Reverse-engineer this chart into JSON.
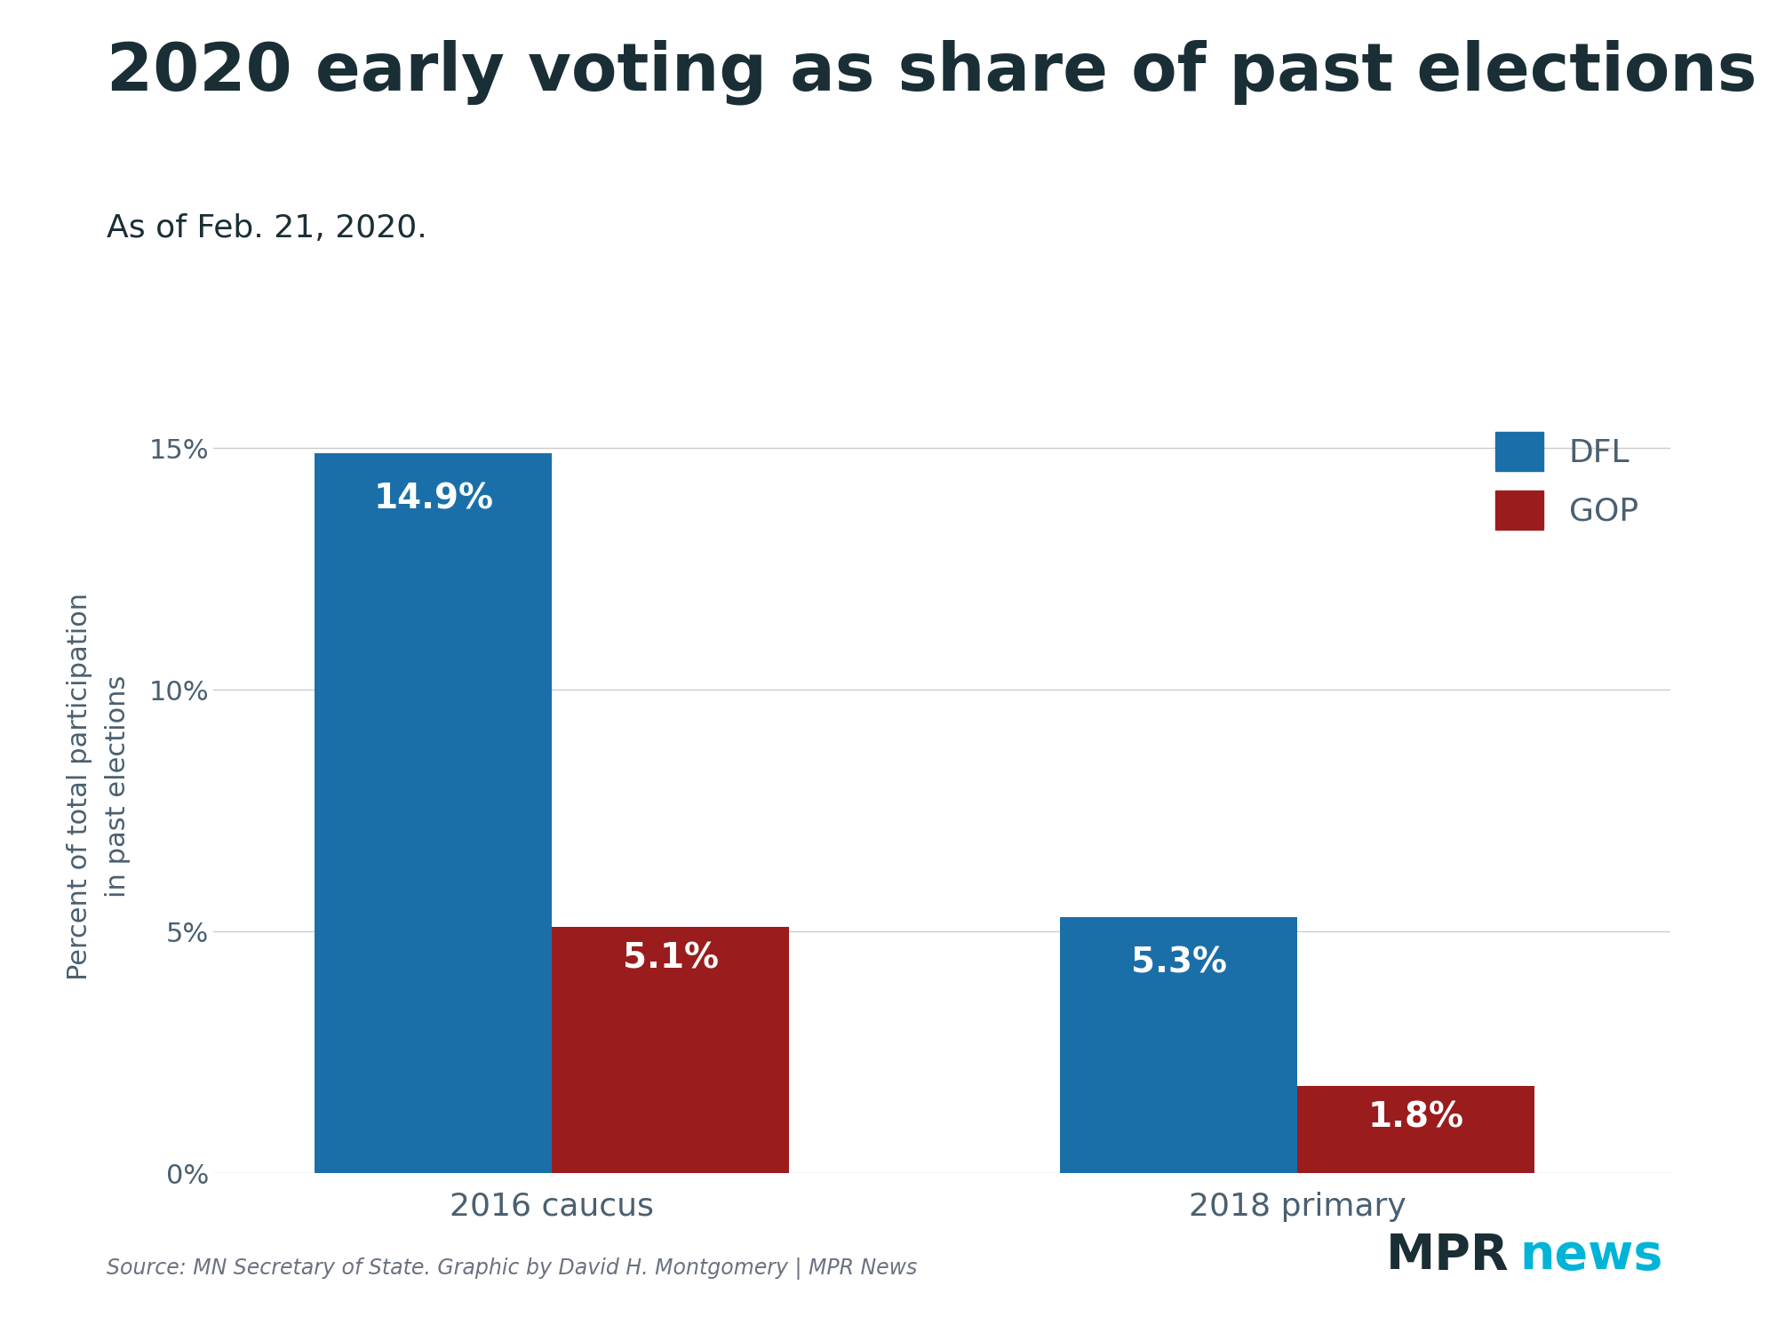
{
  "title": "2020 early voting as share of past elections",
  "subtitle": "As of Feb. 21, 2020.",
  "groups": [
    "2016 caucus",
    "2018 primary"
  ],
  "parties": [
    "DFL",
    "GOP"
  ],
  "values": {
    "2016 caucus": {
      "DFL": 14.9,
      "GOP": 5.1
    },
    "2018 primary": {
      "DFL": 5.3,
      "GOP": 1.8
    }
  },
  "dfl_color": "#1B6FA8",
  "gop_color": "#9B1C1C",
  "background_color": "#FFFFFF",
  "title_color": "#1A2E35",
  "ylabel": "Percent of total participation\nin past elections",
  "ylim": [
    0,
    16
  ],
  "yticks": [
    0,
    5,
    10,
    15
  ],
  "ytick_labels": [
    "0%",
    "5%",
    "10%",
    "15%"
  ],
  "bar_label_color": "#FFFFFF",
  "source_text": "Source: MN Secretary of State. Graphic by David H. Montgomery | MPR News",
  "mpr_text_mpr": "MPR",
  "mpr_text_news": "news",
  "mpr_color": "#1A2E35",
  "news_color": "#00B4D8",
  "axis_color": "#4A6070",
  "tick_color": "#4A6070",
  "group_centers": [
    1.0,
    3.2
  ],
  "bar_width": 0.7
}
